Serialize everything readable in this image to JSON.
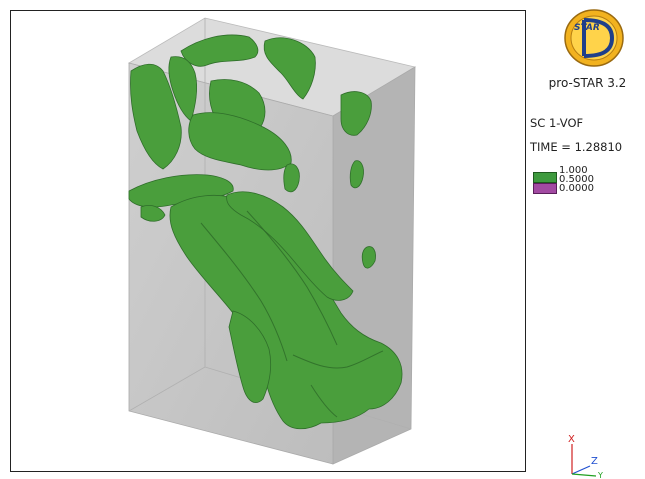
{
  "app": {
    "product_name": "pro-STAR 3.2",
    "logo_text": "STAR"
  },
  "colors": {
    "isosurface": "#3e9a3e",
    "legend_high": "#3e9a3e",
    "legend_low": "#a24aa2",
    "box": "#c7c7c7"
  },
  "scalar": {
    "label": "SC  1-VOF"
  },
  "time": {
    "label": "TIME =",
    "value": "1.28810"
  },
  "legend": {
    "values": [
      "1.000",
      "0.5000",
      "0.0000"
    ]
  },
  "axes": {
    "x": "X",
    "z": "Z",
    "y": "Y"
  }
}
